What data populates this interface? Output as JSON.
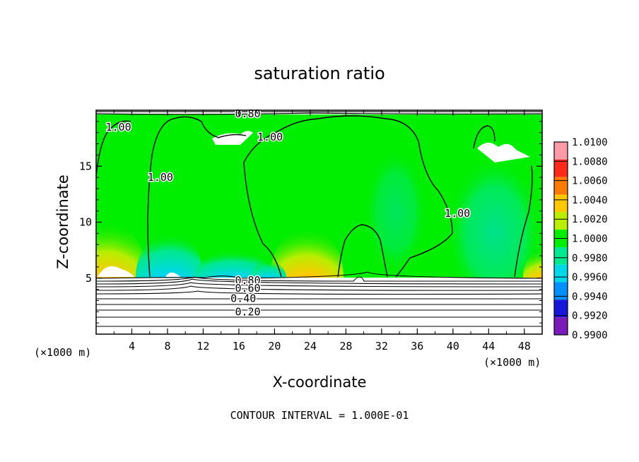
{
  "chart_data": {
    "type": "heatmap",
    "title": "saturation ratio",
    "xlabel": "X-coordinate",
    "ylabel": "Z-coordinate",
    "x_unit_left": "(×1000 m)",
    "x_unit_right": "(×1000 m)",
    "xlim": [
      0,
      50
    ],
    "ylim": [
      0,
      20
    ],
    "x_ticks": [
      4,
      8,
      12,
      16,
      20,
      24,
      28,
      32,
      36,
      40,
      44,
      48
    ],
    "y_ticks": [
      5,
      10,
      15
    ],
    "colorbar": {
      "levels": [
        "1.0100",
        "1.0080",
        "1.0060",
        "1.0040",
        "1.0020",
        "1.0000",
        "0.9980",
        "0.9960",
        "0.9940",
        "0.9920",
        "0.9900"
      ],
      "colors": [
        "#ff9aa8",
        "#ff2a1a",
        "#ff7a00",
        "#ffc800",
        "#b8ee00",
        "#00ee00",
        "#00e890",
        "#00d8e8",
        "#0090ff",
        "#1818d8",
        "#7a1ab8"
      ]
    },
    "contour_labels": [
      {
        "text": "1.00",
        "x": 2.5,
        "y": 18.5
      },
      {
        "text": "1.00",
        "x": 7.2,
        "y": 14.0
      },
      {
        "text": "1.00",
        "x": 19.5,
        "y": 17.6
      },
      {
        "text": "1.00",
        "x": 40.5,
        "y": 10.8
      },
      {
        "text": "0.80",
        "x": 17.0,
        "y": 19.7
      },
      {
        "text": "0.80",
        "x": 17.0,
        "y": 4.8
      },
      {
        "text": "0.60",
        "x": 17.0,
        "y": 4.1
      },
      {
        "text": "0.40",
        "x": 16.5,
        "y": 3.2
      },
      {
        "text": "0.20",
        "x": 17.0,
        "y": 2.0
      }
    ],
    "annotation": "CONTOUR INTERVAL = 1.000E-01"
  }
}
